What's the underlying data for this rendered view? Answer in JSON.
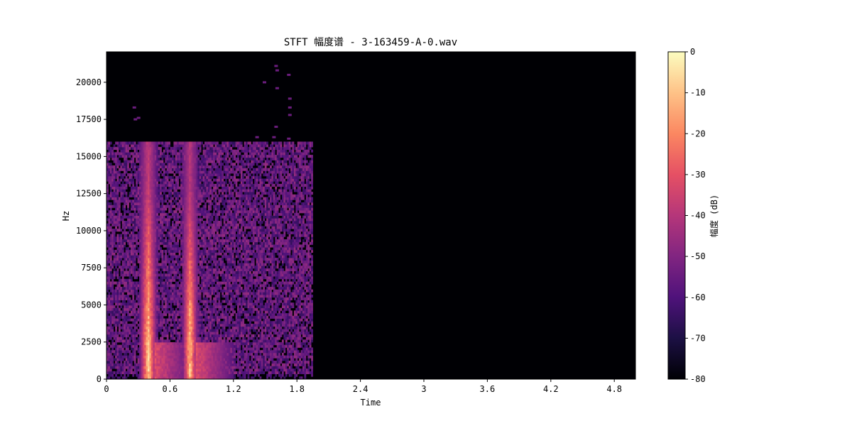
{
  "chart_data": {
    "type": "heatmap",
    "title": "STFT 幅度谱 - 3-163459-A-0.wav",
    "xlabel": "Time",
    "ylabel": "Hz",
    "xlim": [
      0,
      5.0
    ],
    "ylim": [
      0,
      22050
    ],
    "x_ticks": [
      "0",
      "0.6",
      "1.2",
      "1.8",
      "2.4",
      "3",
      "3.6",
      "4.2",
      "4.8"
    ],
    "x_tick_values": [
      0,
      0.6,
      1.2,
      1.8,
      2.4,
      3.0,
      3.6,
      4.2,
      4.8
    ],
    "y_ticks": [
      "0",
      "2500",
      "5000",
      "7500",
      "10000",
      "12500",
      "15000",
      "17500",
      "20000"
    ],
    "y_tick_values": [
      0,
      2500,
      5000,
      7500,
      10000,
      12500,
      15000,
      17500,
      20000
    ],
    "colormap": "magma",
    "colorbar": {
      "label": "幅度 (dB)",
      "range": [
        -80,
        0
      ],
      "ticks": [
        "0",
        "-10",
        "-20",
        "-30",
        "-40",
        "-50",
        "-60",
        "-70",
        "-80"
      ],
      "tick_values": [
        0,
        -10,
        -20,
        -30,
        -40,
        -50,
        -60,
        -70,
        -80
      ]
    },
    "signal_end_time": 1.95,
    "noise_band_max_hz": 16000,
    "noise_floor_db": -58,
    "events": [
      {
        "name": "onset 1",
        "time_start": 0.33,
        "time_end": 0.46,
        "peak_db": -5,
        "energy_to_hz": 16000
      },
      {
        "name": "onset 2",
        "time_start": 0.73,
        "time_end": 0.85,
        "peak_db": -8,
        "energy_to_hz": 16000
      }
    ],
    "sparse_high_freq_specks": [
      {
        "time": 0.26,
        "hz": 18300
      },
      {
        "time": 0.27,
        "hz": 17500
      },
      {
        "time": 0.3,
        "hz": 17600
      },
      {
        "time": 1.49,
        "hz": 20000
      },
      {
        "time": 1.6,
        "hz": 21100
      },
      {
        "time": 1.61,
        "hz": 20800
      },
      {
        "time": 1.61,
        "hz": 19600
      },
      {
        "time": 1.72,
        "hz": 20500
      },
      {
        "time": 1.73,
        "hz": 18900
      },
      {
        "time": 1.73,
        "hz": 18300
      },
      {
        "time": 1.73,
        "hz": 17800
      },
      {
        "time": 1.6,
        "hz": 17000
      },
      {
        "time": 1.42,
        "hz": 16300
      },
      {
        "time": 1.58,
        "hz": 16300
      },
      {
        "time": 1.72,
        "hz": 16200
      }
    ]
  }
}
